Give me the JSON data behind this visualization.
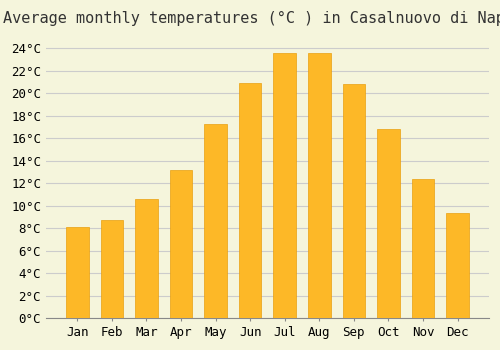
{
  "title": "Average monthly temperatures (°C ) in Casalnuovo di Napoli",
  "months": [
    "Jan",
    "Feb",
    "Mar",
    "Apr",
    "May",
    "Jun",
    "Jul",
    "Aug",
    "Sep",
    "Oct",
    "Nov",
    "Dec"
  ],
  "temperatures": [
    8.1,
    8.7,
    10.6,
    13.2,
    17.3,
    20.9,
    23.6,
    23.6,
    20.8,
    16.8,
    12.4,
    9.4
  ],
  "bar_color": "#FDB827",
  "bar_edge_color": "#E8A010",
  "background_color": "#F5F5DC",
  "grid_color": "#CCCCCC",
  "ylim": [
    0,
    25
  ],
  "ytick_step": 2,
  "title_fontsize": 11,
  "tick_fontsize": 9,
  "font_family": "monospace"
}
